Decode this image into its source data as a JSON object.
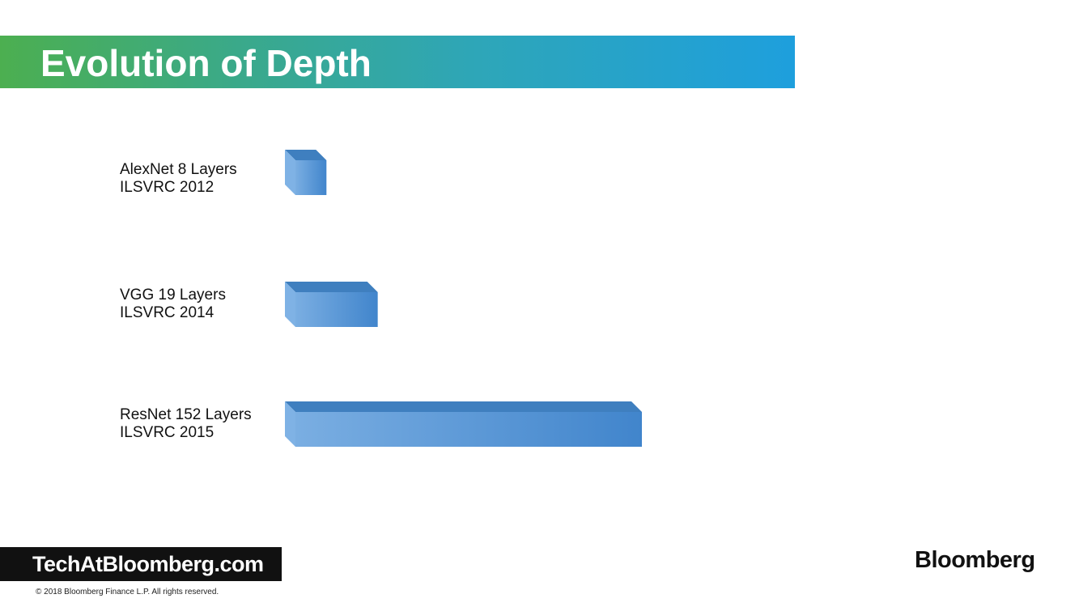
{
  "slide": {
    "title": "Evolution of Depth",
    "footer_site": "TechAtBloomberg.com",
    "copyright": "© 2018  Bloomberg  Finance L.P.  All rights reserved.",
    "logo": "Bloomberg"
  },
  "colors": {
    "title_gradient": [
      "#4caf50",
      "#1e9fdd"
    ],
    "bar_front": "#4a90d9",
    "bar_top": "#3f7fbf",
    "bar_side": "#7fb2e5"
  },
  "chart_data": {
    "type": "bar",
    "orientation": "horizontal",
    "style": "3d",
    "categories": [
      {
        "name": "AlexNet 8 Layers",
        "competition": "ILSVRC 2012"
      },
      {
        "name": "VGG 19 Layers",
        "competition": "ILSVRC 2014"
      },
      {
        "name": "ResNet 152 Layers",
        "competition": "ILSVRC 2015"
      }
    ],
    "values": [
      8,
      19,
      152
    ],
    "unit": "Layers",
    "grid": false,
    "legend": "none"
  }
}
